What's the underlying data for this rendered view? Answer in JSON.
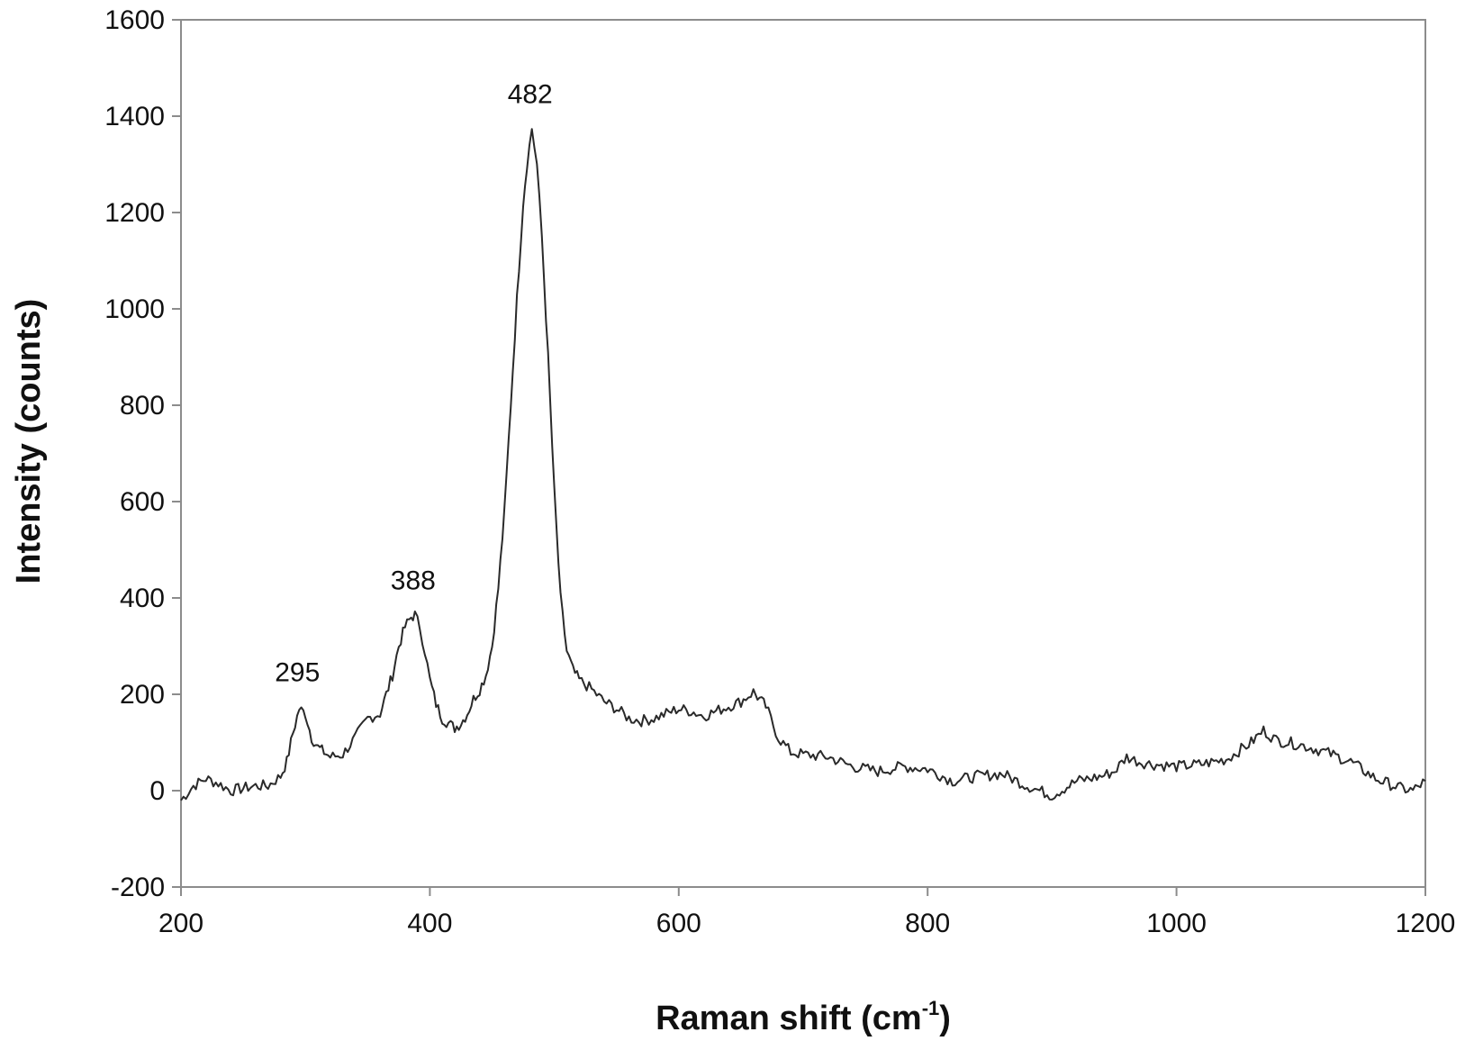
{
  "chart_data": {
    "type": "line",
    "title": "",
    "xlabel": "Raman shift (cm",
    "xlabel_sup": "-1",
    "xlabel_end": ")",
    "ylabel": "Intensity (counts)",
    "xlim": [
      200,
      1200
    ],
    "ylim": [
      -200,
      1600
    ],
    "xticks": [
      "200",
      "400",
      "600",
      "800",
      "1000",
      "1200"
    ],
    "yticks": [
      "-200",
      "0",
      "200",
      "400",
      "600",
      "800",
      "1000",
      "1200",
      "1400",
      "1600"
    ],
    "grid": false,
    "legend": "none",
    "line_color": "#2a2a2a",
    "annotations": [
      {
        "text": "295",
        "x": 295,
        "y": 175
      },
      {
        "text": "388",
        "x": 388,
        "y": 365
      },
      {
        "text": "482",
        "x": 482,
        "y": 1375
      }
    ],
    "series": [
      {
        "x": [
          200,
          210,
          220,
          230,
          240,
          250,
          260,
          270,
          280,
          285,
          290,
          295,
          300,
          305,
          310,
          315,
          320,
          330,
          340,
          350,
          360,
          365,
          370,
          375,
          380,
          385,
          388,
          392,
          396,
          400,
          405,
          410,
          415,
          420,
          425,
          430,
          435,
          440,
          445,
          450,
          455,
          460,
          465,
          470,
          475,
          478,
          482,
          486,
          490,
          495,
          500,
          505,
          510,
          515,
          520,
          530,
          540,
          550,
          560,
          570,
          580,
          590,
          600,
          610,
          620,
          630,
          640,
          650,
          660,
          665,
          670,
          680,
          690,
          700,
          720,
          740,
          760,
          780,
          800,
          820,
          840,
          860,
          880,
          900,
          920,
          940,
          950,
          960,
          970,
          980,
          1000,
          1020,
          1040,
          1060,
          1070,
          1080,
          1100,
          1120,
          1140,
          1160,
          1180,
          1190,
          1200
        ],
        "y": [
          -20,
          10,
          25,
          15,
          0,
          5,
          10,
          10,
          30,
          60,
          120,
          170,
          160,
          110,
          90,
          80,
          70,
          75,
          110,
          150,
          160,
          200,
          240,
          300,
          340,
          360,
          365,
          340,
          290,
          230,
          180,
          150,
          140,
          130,
          140,
          160,
          190,
          210,
          240,
          300,
          420,
          580,
          800,
          1020,
          1220,
          1300,
          1375,
          1300,
          1150,
          900,
          620,
          400,
          290,
          250,
          230,
          210,
          185,
          170,
          150,
          145,
          150,
          160,
          170,
          165,
          155,
          165,
          175,
          185,
          205,
          190,
          175,
          110,
          80,
          75,
          70,
          50,
          40,
          50,
          45,
          20,
          30,
          35,
          10,
          -10,
          20,
          30,
          40,
          70,
          60,
          55,
          50,
          55,
          65,
          100,
          125,
          105,
          95,
          80,
          60,
          25,
          5,
          0,
          20
        ]
      }
    ]
  }
}
